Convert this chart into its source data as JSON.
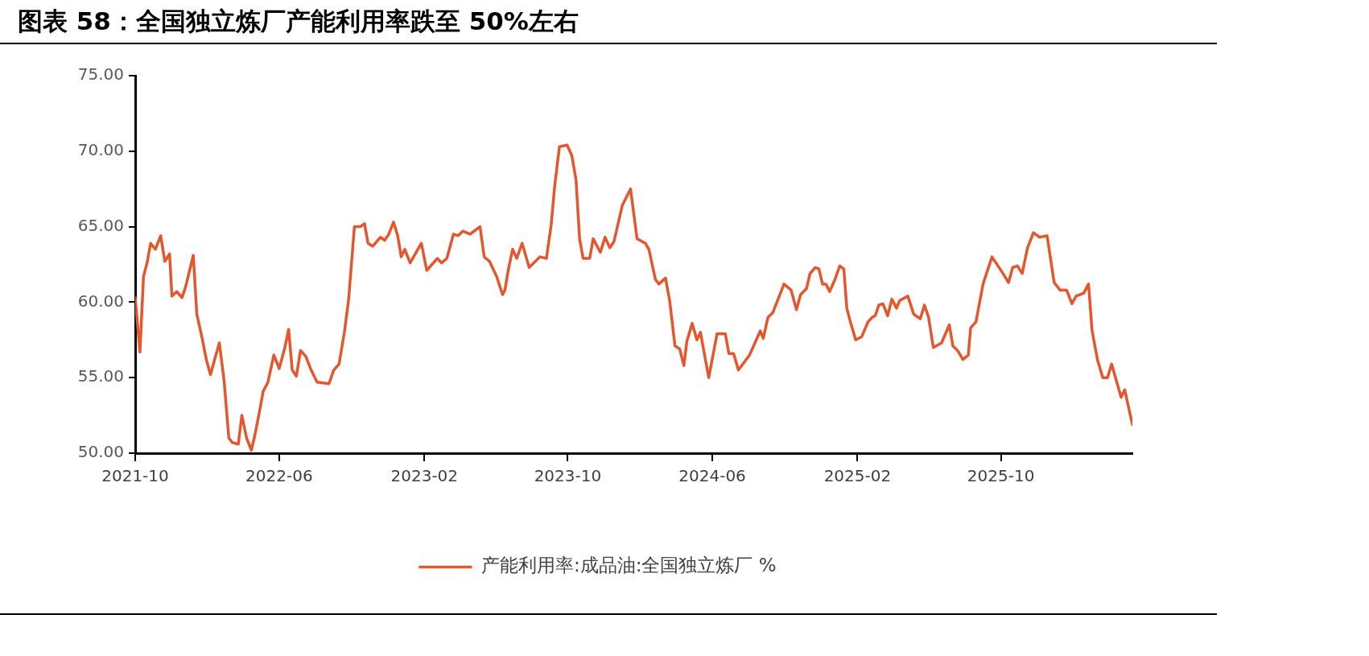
{
  "chart_data": {
    "type": "line",
    "title": "图表 58：全国独立炼厂产能利用率跌至 50%左右",
    "x": [
      "2021-10-01",
      "2021-10-09",
      "2021-10-15",
      "2021-10-21",
      "2021-10-27",
      "2021-11-04",
      "2021-11-13",
      "2021-11-20",
      "2021-11-28",
      "2021-12-02",
      "2021-12-10",
      "2021-12-19",
      "2021-12-25",
      "2022-01-07",
      "2022-01-13",
      "2022-01-22",
      "2022-01-29",
      "2022-02-05",
      "2022-02-12",
      "2022-02-20",
      "2022-02-28",
      "2022-03-08",
      "2022-03-14",
      "2022-03-24",
      "2022-03-30",
      "2022-04-07",
      "2022-04-15",
      "2022-04-21",
      "2022-04-28",
      "2022-05-05",
      "2022-05-13",
      "2022-05-23",
      "2022-06-01",
      "2022-06-10",
      "2022-06-17",
      "2022-06-23",
      "2022-06-30",
      "2022-07-07",
      "2022-07-16",
      "2022-07-25",
      "2022-08-04",
      "2022-08-24",
      "2022-09-01",
      "2022-09-10",
      "2022-09-19",
      "2022-09-26",
      "2022-10-06",
      "2022-10-16",
      "2022-10-23",
      "2022-10-29",
      "2022-11-06",
      "2022-11-19",
      "2022-11-26",
      "2022-12-03",
      "2022-12-11",
      "2022-12-18",
      "2022-12-24",
      "2022-12-30",
      "2023-01-08",
      "2023-01-27",
      "2023-02-05",
      "2023-02-14",
      "2023-02-23",
      "2023-03-02",
      "2023-03-11",
      "2023-03-22",
      "2023-03-30",
      "2023-04-07",
      "2023-04-19",
      "2023-05-06",
      "2023-05-13",
      "2023-05-22",
      "2023-06-03",
      "2023-06-13",
      "2023-06-17",
      "2023-06-23",
      "2023-06-30",
      "2023-07-07",
      "2023-07-16",
      "2023-07-28",
      "2023-08-15",
      "2023-08-26",
      "2023-09-03",
      "2023-09-09",
      "2023-09-17",
      "2023-09-30",
      "2023-10-08",
      "2023-10-15",
      "2023-10-21",
      "2023-10-27",
      "2023-11-07",
      "2023-11-13",
      "2023-11-25",
      "2023-12-03",
      "2023-12-11",
      "2023-12-18",
      "2024-01-01",
      "2024-01-15",
      "2024-01-26",
      "2024-02-09",
      "2024-02-15",
      "2024-02-26",
      "2024-03-03",
      "2024-03-14",
      "2024-03-21",
      "2024-03-30",
      "2024-04-07",
      "2024-04-14",
      "2024-04-19",
      "2024-04-28",
      "2024-05-06",
      "2024-05-12",
      "2024-05-26",
      "2024-06-09",
      "2024-06-23",
      "2024-06-29",
      "2024-07-07",
      "2024-07-15",
      "2024-08-03",
      "2024-08-21",
      "2024-08-26",
      "2024-09-03",
      "2024-09-11",
      "2024-09-30",
      "2024-10-12",
      "2024-10-21",
      "2024-10-28",
      "2024-11-07",
      "2024-11-13",
      "2024-11-22",
      "2024-11-28",
      "2024-12-04",
      "2024-12-10",
      "2024-12-16",
      "2024-12-25",
      "2025-01-02",
      "2025-01-09",
      "2025-01-14",
      "2025-01-20",
      "2025-01-29",
      "2025-02-08",
      "2025-02-19",
      "2025-02-26",
      "2025-03-03",
      "2025-03-09",
      "2025-03-16",
      "2025-03-24",
      "2025-03-31",
      "2025-04-08",
      "2025-04-13",
      "2025-04-27",
      "2025-05-07",
      "2025-05-18",
      "2025-05-25",
      "2025-06-01",
      "2025-06-09",
      "2025-06-23",
      "2025-07-06",
      "2025-07-12",
      "2025-07-20",
      "2025-07-29",
      "2025-08-07",
      "2025-08-11",
      "2025-08-20",
      "2025-09-01",
      "2025-09-16",
      "2025-10-03",
      "2025-10-14",
      "2025-10-21",
      "2025-10-29",
      "2025-11-06",
      "2025-11-15",
      "2025-11-25",
      "2025-12-05",
      "2025-12-18",
      "2025-12-30",
      "2026-01-09",
      "2026-01-20",
      "2026-01-29",
      "2026-02-05",
      "2026-02-18",
      "2026-02-26",
      "2026-03-04",
      "2026-03-13",
      "2026-03-22",
      "2026-03-30",
      "2026-04-06",
      "2026-04-14",
      "2026-04-22",
      "2026-04-28",
      "2026-05-11"
    ],
    "series": [
      {
        "name": "产能利用率:成品油:全国独立炼厂 %",
        "color": "#e4572e",
        "values": [
          60.3,
          56.7,
          61.7,
          62.6,
          63.9,
          63.5,
          64.4,
          62.7,
          63.2,
          60.4,
          60.7,
          60.3,
          61.0,
          63.1,
          59.2,
          57.6,
          56.2,
          55.2,
          56.2,
          57.3,
          54.8,
          51.0,
          50.7,
          50.6,
          52.5,
          51.0,
          50.2,
          51.2,
          52.6,
          54.1,
          54.7,
          56.5,
          55.6,
          56.9,
          58.2,
          55.5,
          55.1,
          56.8,
          56.4,
          55.5,
          54.7,
          54.6,
          55.5,
          55.9,
          58.0,
          60.1,
          65.0,
          65.0,
          65.2,
          63.9,
          63.7,
          64.3,
          64.1,
          64.5,
          65.3,
          64.4,
          63.0,
          63.5,
          62.6,
          63.9,
          62.1,
          62.5,
          62.9,
          62.6,
          62.9,
          64.5,
          64.4,
          64.7,
          64.5,
          65.0,
          63.0,
          62.7,
          61.7,
          60.5,
          60.8,
          62.2,
          63.5,
          62.9,
          63.9,
          62.3,
          63.0,
          62.9,
          65.1,
          67.7,
          70.3,
          70.4,
          69.7,
          68.1,
          64.2,
          62.9,
          62.9,
          64.2,
          63.3,
          64.3,
          63.6,
          64.0,
          66.4,
          67.5,
          64.2,
          63.9,
          63.5,
          61.5,
          61.2,
          61.6,
          60.1,
          57.1,
          56.9,
          55.8,
          57.4,
          58.6,
          57.5,
          58.0,
          55.0,
          57.9,
          57.9,
          56.6,
          56.6,
          55.5,
          56.5,
          58.1,
          57.6,
          59.0,
          59.3,
          61.2,
          60.8,
          59.5,
          60.5,
          60.9,
          61.9,
          62.3,
          62.2,
          61.2,
          61.2,
          60.7,
          61.5,
          62.4,
          62.2,
          59.6,
          58.7,
          57.5,
          57.7,
          58.7,
          59.0,
          59.1,
          59.8,
          59.9,
          59.1,
          60.2,
          59.6,
          60.1,
          60.4,
          59.2,
          58.9,
          59.8,
          59.0,
          57.0,
          57.3,
          58.5,
          57.1,
          56.8,
          56.2,
          56.5,
          58.3,
          58.7,
          61.2,
          63.0,
          62.0,
          61.3,
          62.3,
          62.4,
          61.9,
          63.6,
          64.6,
          64.3,
          64.4,
          61.3,
          60.8,
          60.8,
          59.9,
          60.4,
          60.6,
          61.2,
          58.1,
          56.2,
          55.0,
          55.0,
          55.9,
          54.8,
          53.7,
          54.2,
          51.9
        ]
      }
    ],
    "xlim": [
      "2021-10-01",
      "2026-05-11"
    ],
    "xticks": [
      "2021-10",
      "2022-06",
      "2023-02",
      "2023-10",
      "2024-06",
      "2025-02",
      "2025-10"
    ],
    "ylim": [
      50,
      75
    ],
    "yticks": [
      {
        "value": 50,
        "label": "50.00"
      },
      {
        "value": 55,
        "label": "55.00"
      },
      {
        "value": 60,
        "label": "60.00"
      },
      {
        "value": 65,
        "label": "65.00"
      },
      {
        "value": 70,
        "label": "70.00"
      },
      {
        "value": 75,
        "label": "75.00"
      }
    ],
    "legend": "bottom",
    "grid": false,
    "line_style": "solid"
  }
}
